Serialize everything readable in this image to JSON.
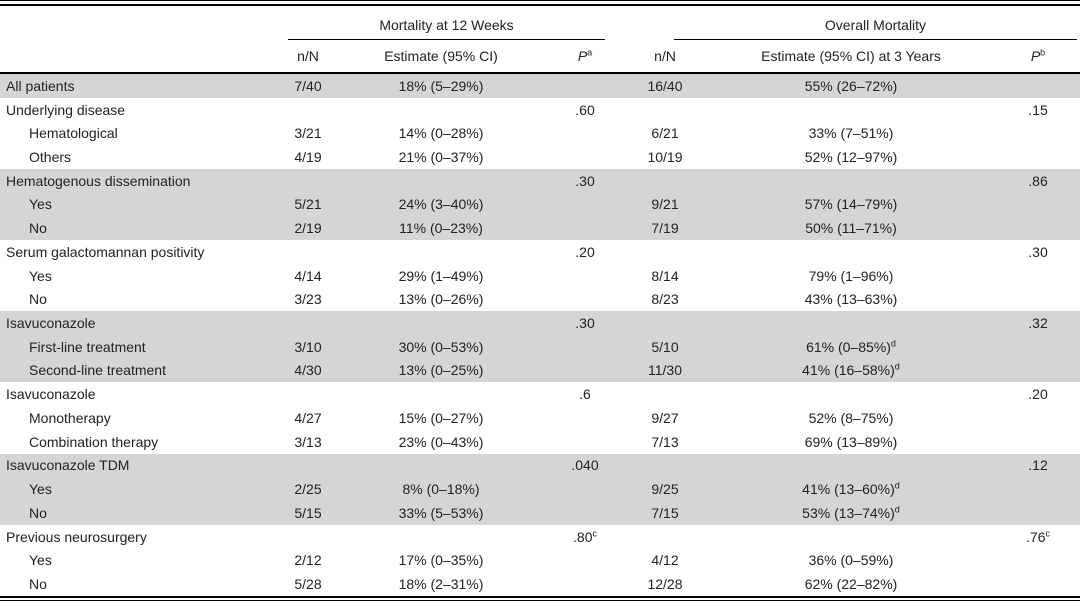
{
  "colors": {
    "row_shade": "#d5d5d5",
    "rule": "#000000",
    "text": "#222222",
    "background": "#ffffff"
  },
  "header": {
    "spanner_12w": "Mortality at 12 Weeks",
    "spanner_overall": "Overall Mortality",
    "col_nn_12w": "n/N",
    "col_est_12w": "Estimate (95% CI)",
    "col_p_12w": {
      "label": "P",
      "sup": "a"
    },
    "col_nn_overall": "n/N",
    "col_est_overall": "Estimate (95% CI) at 3 Years",
    "col_p_overall": {
      "label": "P",
      "sup": "b"
    }
  },
  "rows": [
    {
      "label": "All patients",
      "shaded": true,
      "nn1": "7/40",
      "est1": "18% (5–29%)",
      "nn2": "16/40",
      "est2": "55% (26–72%)"
    },
    {
      "label": "Underlying disease",
      "p1": ".60",
      "p2": ".15"
    },
    {
      "label": "Hematological",
      "indent": true,
      "nn1": "3/21",
      "est1": "14% (0–28%)",
      "nn2": "6/21",
      "est2": "33% (7–51%)"
    },
    {
      "label": "Others",
      "indent": true,
      "nn1": "4/19",
      "est1": "21% (0–37%)",
      "nn2": "10/19",
      "est2": "52% (12–97%)"
    },
    {
      "label": "Hematogenous dissemination",
      "shaded": true,
      "p1": ".30",
      "p2": ".86"
    },
    {
      "label": "Yes",
      "indent": true,
      "shaded": true,
      "nn1": "5/21",
      "est1": "24% (3–40%)",
      "nn2": "9/21",
      "est2": "57% (14–79%)"
    },
    {
      "label": "No",
      "indent": true,
      "shaded": true,
      "nn1": "2/19",
      "est1": "11% (0–23%)",
      "nn2": "7/19",
      "est2": "50% (11–71%)"
    },
    {
      "label": "Serum galactomannan positivity",
      "p1": ".20",
      "p2": ".30"
    },
    {
      "label": "Yes",
      "indent": true,
      "nn1": "4/14",
      "est1": "29% (1–49%)",
      "nn2": "8/14",
      "est2": "79% (1–96%)"
    },
    {
      "label": "No",
      "indent": true,
      "nn1": "3/23",
      "est1": "13% (0–26%)",
      "nn2": "8/23",
      "est2": "43% (13–63%)"
    },
    {
      "label": "Isavuconazole",
      "shaded": true,
      "p1": ".30",
      "p2": ".32"
    },
    {
      "label": "First-line treatment",
      "indent": true,
      "shaded": true,
      "nn1": "3/10",
      "est1": "30% (0–53%)",
      "nn2": "5/10",
      "est2": "61% (0–85%)",
      "est2_sup": "d"
    },
    {
      "label": "Second-line treatment",
      "indent": true,
      "shaded": true,
      "nn1": "4/30",
      "est1": "13% (0–25%)",
      "nn2": "11/30",
      "est2": "41% (16–58%)",
      "est2_sup": "d"
    },
    {
      "label": "Isavuconazole",
      "p1": ".6",
      "p2": ".20"
    },
    {
      "label": "Monotherapy",
      "indent": true,
      "nn1": "4/27",
      "est1": "15% (0–27%)",
      "nn2": "9/27",
      "est2": "52% (8–75%)"
    },
    {
      "label": "Combination therapy",
      "indent": true,
      "nn1": "3/13",
      "est1": "23% (0–43%)",
      "nn2": "7/13",
      "est2": "69% (13–89%)"
    },
    {
      "label": "Isavuconazole TDM",
      "shaded": true,
      "p1": ".040",
      "p2": ".12"
    },
    {
      "label": "Yes",
      "indent": true,
      "shaded": true,
      "nn1": "2/25",
      "est1": "8% (0–18%)",
      "nn2": "9/25",
      "est2": "41% (13–60%)",
      "est2_sup": "d"
    },
    {
      "label": "No",
      "indent": true,
      "shaded": true,
      "nn1": "5/15",
      "est1": "33% (5–53%)",
      "nn2": "7/15",
      "est2": "53% (13–74%)",
      "est2_sup": "d"
    },
    {
      "label": "Previous neurosurgery",
      "p1": ".80",
      "p1_sup": "c",
      "p2": ".76",
      "p2_sup": "c"
    },
    {
      "label": "Yes",
      "indent": true,
      "nn1": "2/12",
      "est1": "17% (0–35%)",
      "nn2": "4/12",
      "est2": "36% (0–59%)"
    },
    {
      "label": "No",
      "indent": true,
      "nn1": "5/28",
      "est1": "18% (2–31%)",
      "nn2": "12/28",
      "est2": "62% (22–82%)"
    }
  ]
}
